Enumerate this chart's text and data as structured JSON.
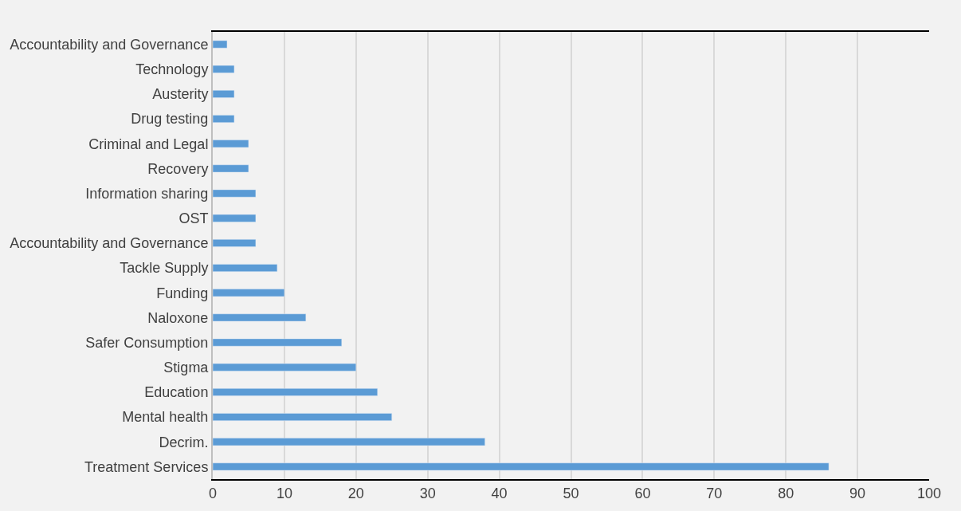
{
  "chart_data": {
    "type": "bar",
    "orientation": "horizontal",
    "categories": [
      "Accountability and Governance",
      "Technology",
      "Austerity",
      "Drug testing",
      "Criminal and Legal",
      "Recovery",
      "Information sharing",
      "OST",
      "Accountability and Governance",
      "Tackle Supply",
      "Funding",
      "Naloxone",
      "Safer Consumption",
      "Stigma",
      "Education",
      "Mental health",
      "Decrim.",
      "Treatment Services"
    ],
    "values": [
      2,
      3,
      3,
      3,
      5,
      5,
      6,
      6,
      6,
      9,
      10,
      13,
      18,
      20,
      23,
      25,
      38,
      86
    ],
    "color": "#5b9bd5",
    "xlim": [
      0,
      100
    ],
    "xticks": [
      0,
      10,
      20,
      30,
      40,
      50,
      60,
      70,
      80,
      90,
      100
    ],
    "grid": "x"
  }
}
